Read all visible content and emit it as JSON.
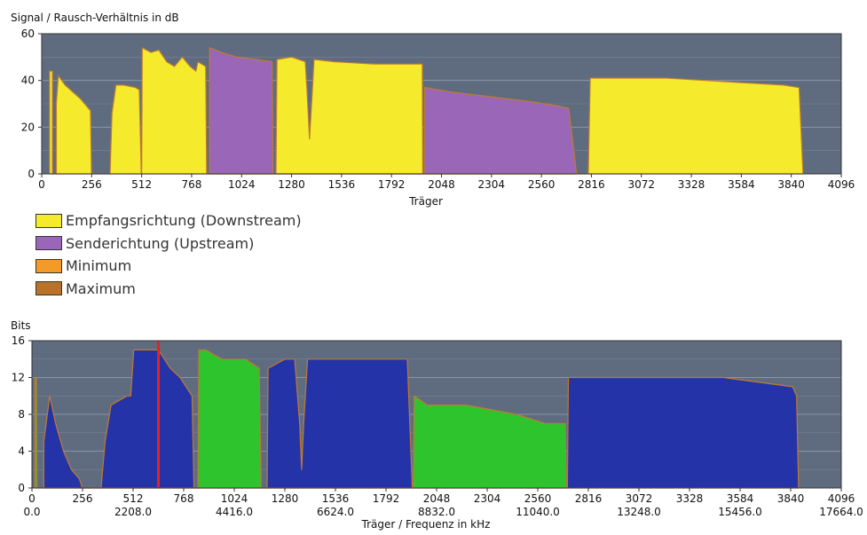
{
  "chart_data": [
    {
      "type": "area",
      "title": "Signal / Rausch-Verhältnis in dB",
      "xlabel": "Träger",
      "ylabel": "Signal / Rausch-Verhältnis in dB",
      "xlim": [
        0,
        4096
      ],
      "ylim": [
        0,
        60
      ],
      "x_ticks": [
        "0",
        "256",
        "512",
        "768",
        "1024",
        "1280",
        "1536",
        "1792",
        "2048",
        "2304",
        "2560",
        "2816",
        "3072",
        "3328",
        "3584",
        "3840",
        "4096"
      ],
      "y_ticks": [
        "0",
        "20",
        "40",
        "60"
      ],
      "series": [
        {
          "name": "Empfangsrichtung (Downstream)",
          "color": "#f5ea2c",
          "points": [
            [
              40,
              0
            ],
            [
              40,
              44
            ],
            [
              55,
              44
            ],
            [
              55,
              0
            ],
            [
              75,
              0
            ],
            [
              75,
              30
            ],
            [
              85,
              42
            ],
            [
              120,
              38
            ],
            [
              200,
              32
            ],
            [
              250,
              27
            ],
            [
              255,
              0
            ],
            [
              350,
              0
            ],
            [
              360,
              26
            ],
            [
              380,
              38
            ],
            [
              420,
              38
            ],
            [
              480,
              37
            ],
            [
              500,
              36
            ],
            [
              510,
              0
            ],
            [
              512,
              0
            ],
            [
              515,
              54
            ],
            [
              560,
              52
            ],
            [
              600,
              53
            ],
            [
              640,
              48
            ],
            [
              680,
              46
            ],
            [
              720,
              50
            ],
            [
              760,
              46
            ],
            [
              790,
              44
            ],
            [
              800,
              48
            ],
            [
              840,
              46
            ],
            [
              845,
              0
            ],
            [
              1200,
              0
            ],
            [
              1205,
              49
            ],
            [
              1280,
              50
            ],
            [
              1350,
              48
            ],
            [
              1360,
              34
            ],
            [
              1372,
              15
            ],
            [
              1385,
              34
            ],
            [
              1395,
              49
            ],
            [
              1500,
              48
            ],
            [
              1700,
              47
            ],
            [
              1950,
              47
            ],
            [
              1952,
              0
            ],
            [
              2800,
              0
            ],
            [
              2810,
              41
            ],
            [
              3000,
              41
            ],
            [
              3200,
              41
            ],
            [
              3400,
              40
            ],
            [
              3600,
              39
            ],
            [
              3800,
              38
            ],
            [
              3880,
              37
            ],
            [
              3900,
              0
            ]
          ]
        },
        {
          "name": "Senderichtung (Upstream)",
          "color": "#9a66b8",
          "points": [
            [
              860,
              0
            ],
            [
              860,
              54
            ],
            [
              920,
              52
            ],
            [
              1000,
              50
            ],
            [
              1100,
              49
            ],
            [
              1180,
              48
            ],
            [
              1185,
              0
            ],
            [
              1960,
              0
            ],
            [
              1962,
              37
            ],
            [
              2100,
              35
            ],
            [
              2300,
              33
            ],
            [
              2500,
              31
            ],
            [
              2650,
              29
            ],
            [
              2700,
              28
            ],
            [
              2740,
              0
            ]
          ]
        },
        {
          "name": "Minimum",
          "color": "#f39a28",
          "points": []
        },
        {
          "name": "Maximum",
          "color": "#b87328",
          "points": []
        }
      ]
    },
    {
      "type": "area",
      "title": "Bits",
      "xlabel": "Träger / Frequenz in kHz",
      "ylabel": "Bits",
      "xlim": [
        0,
        4096
      ],
      "ylim": [
        0,
        16
      ],
      "x_ticks": [
        "0",
        "256",
        "512",
        "768",
        "1024",
        "1280",
        "1536",
        "1792",
        "2048",
        "2304",
        "2560",
        "2816",
        "3072",
        "3328",
        "3584",
        "3840",
        "4096"
      ],
      "x_ticks_freq": [
        "0.0",
        "2208.0",
        "4416.0",
        "6624.0",
        "8832.0",
        "11040.0",
        "13248.0",
        "15456.0",
        "17664.0"
      ],
      "y_ticks": [
        "0",
        "4",
        "8",
        "12",
        "16"
      ],
      "marker_carrier": 640,
      "marker_color": "#e82020",
      "series": [
        {
          "name": "Downstream",
          "color": "#2533a8",
          "points": [
            [
              60,
              0
            ],
            [
              60,
              5
            ],
            [
              90,
              10
            ],
            [
              120,
              7
            ],
            [
              160,
              4
            ],
            [
              200,
              2
            ],
            [
              240,
              1
            ],
            [
              255,
              0
            ],
            [
              350,
              0
            ],
            [
              370,
              5
            ],
            [
              400,
              9
            ],
            [
              480,
              10
            ],
            [
              500,
              10
            ],
            [
              515,
              15
            ],
            [
              640,
              15
            ],
            [
              700,
              13
            ],
            [
              750,
              12
            ],
            [
              810,
              10
            ],
            [
              820,
              0
            ],
            [
              1190,
              0
            ],
            [
              1195,
              13
            ],
            [
              1280,
              14
            ],
            [
              1330,
              14
            ],
            [
              1355,
              7
            ],
            [
              1365,
              2
            ],
            [
              1375,
              7
            ],
            [
              1395,
              14
            ],
            [
              1600,
              14
            ],
            [
              1900,
              14
            ],
            [
              1925,
              0
            ],
            [
              2710,
              0
            ],
            [
              2715,
              12
            ],
            [
              3000,
              12
            ],
            [
              3500,
              12
            ],
            [
              3850,
              11
            ],
            [
              3870,
              10
            ],
            [
              3880,
              0
            ]
          ]
        },
        {
          "name": "Upstream",
          "color": "#2ec42e",
          "points": [
            [
              15,
              0
            ],
            [
              15,
              12
            ],
            [
              22,
              12
            ],
            [
              25,
              0
            ],
            [
              840,
              0
            ],
            [
              845,
              15
            ],
            [
              880,
              15
            ],
            [
              960,
              14
            ],
            [
              1080,
              14
            ],
            [
              1150,
              13
            ],
            [
              1160,
              0
            ],
            [
              1930,
              0
            ],
            [
              1935,
              10
            ],
            [
              2000,
              9
            ],
            [
              2200,
              9
            ],
            [
              2450,
              8
            ],
            [
              2600,
              7
            ],
            [
              2700,
              7
            ],
            [
              2705,
              0
            ]
          ]
        }
      ]
    }
  ],
  "legend": {
    "items": [
      {
        "label": "Empfangsrichtung (Downstream)",
        "color": "#f5ea2c"
      },
      {
        "label": "Senderichtung (Upstream)",
        "color": "#9a66b8"
      },
      {
        "label": "Minimum",
        "color": "#f39a28"
      },
      {
        "label": "Maximum",
        "color": "#b87328"
      }
    ]
  },
  "colors": {
    "plot_bg": "#5f6c80",
    "grid": "#8a96a8",
    "outline": "#c07a30"
  }
}
